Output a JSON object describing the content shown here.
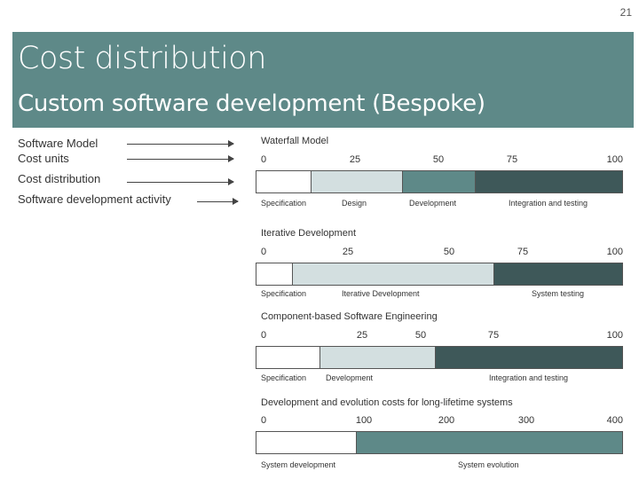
{
  "page_number": "21",
  "title": "Cost distribution",
  "subtitle": "Custom software development (Bespoke)",
  "legend": {
    "software_model": "Software Model",
    "cost_units": "Cost units",
    "cost_distribution": "Cost distribution",
    "activity": "Software development activity"
  },
  "colors": {
    "banner": "#5e8988",
    "white": "#ffffff",
    "light": "#d3dfe0",
    "mid": "#5e8988",
    "dark": "#3e5859"
  },
  "models": [
    {
      "title": "Waterfall Model",
      "ticks": [
        "0",
        "25",
        "50",
        "75",
        "100"
      ],
      "scale_max": 100,
      "segments": [
        {
          "label": "Specification",
          "start": 0,
          "end": 15,
          "color": "#ffffff"
        },
        {
          "label": "Design",
          "start": 15,
          "end": 40,
          "color": "#d3dfe0"
        },
        {
          "label": "Development",
          "start": 40,
          "end": 60,
          "color": "#5e8988"
        },
        {
          "label": "Integration and testing",
          "start": 60,
          "end": 100,
          "color": "#3e5859"
        }
      ]
    },
    {
      "title": "Iterative Development",
      "ticks": [
        "0",
        "25",
        "50",
        "75",
        "100"
      ],
      "scale_max": 100,
      "segments": [
        {
          "label": "Specification",
          "start": 0,
          "end": 10,
          "color": "#ffffff"
        },
        {
          "label": "Iterative Development",
          "start": 10,
          "end": 65,
          "color": "#d3dfe0"
        },
        {
          "label": "System testing",
          "start": 65,
          "end": 100,
          "color": "#3e5859"
        }
      ]
    },
    {
      "title": "Component-based Software Engineering",
      "ticks": [
        "0",
        "25",
        "50",
        "75",
        "100"
      ],
      "scale_max": 100,
      "segments": [
        {
          "label": "Specification",
          "start": 0,
          "end": 17.5,
          "color": "#ffffff"
        },
        {
          "label": "Development",
          "start": 17.5,
          "end": 49,
          "color": "#d3dfe0"
        },
        {
          "label": "Integration and testing",
          "start": 49,
          "end": 100,
          "color": "#3e5859"
        }
      ]
    },
    {
      "title": "Development and evolution costs for long-lifetime systems",
      "ticks": [
        "0",
        "100",
        "200",
        "300",
        "400"
      ],
      "scale_max": 400,
      "segments": [
        {
          "label": "System development",
          "start": 0,
          "end": 110,
          "color": "#ffffff"
        },
        {
          "label": "System evolution",
          "start": 110,
          "end": 400,
          "color": "#5e8988"
        }
      ]
    }
  ]
}
